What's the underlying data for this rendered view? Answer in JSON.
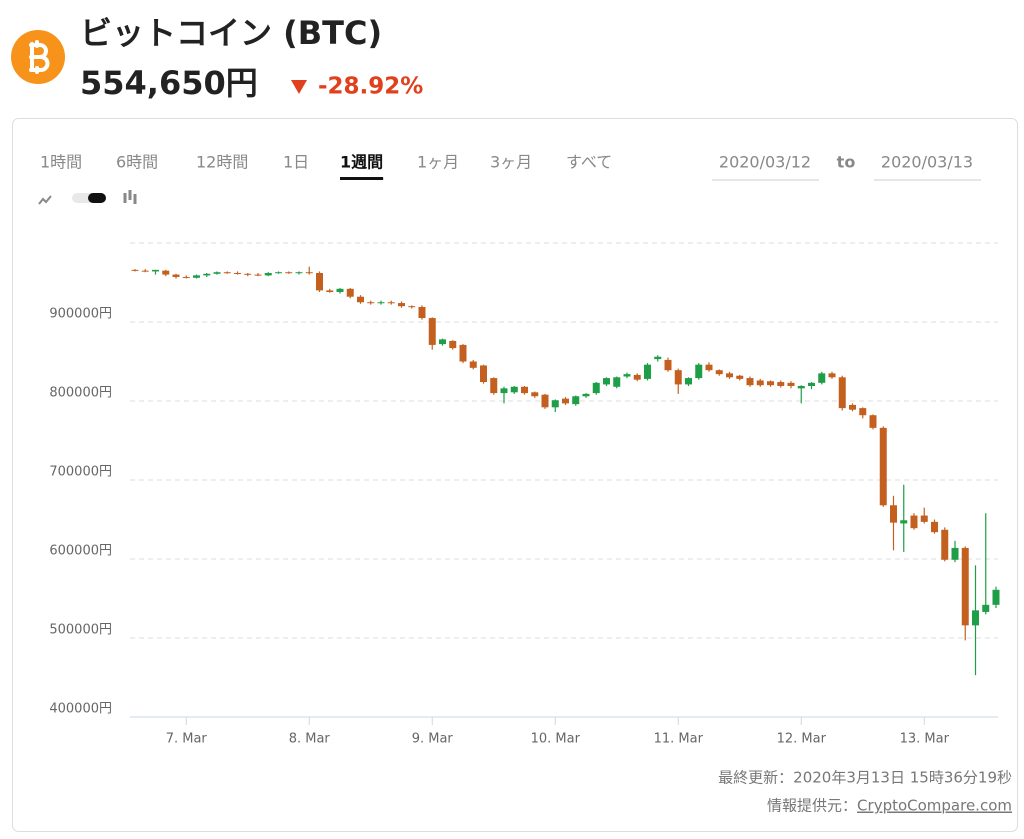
{
  "header": {
    "title": "ビットコイン (BTC)",
    "price": "554,650円",
    "change": "-28.92%"
  },
  "tabs": [
    "1時間",
    "6時間",
    "12時間",
    "1日",
    "1週間",
    "1ヶ月",
    "3ヶ月",
    "すべて"
  ],
  "active_tab": 4,
  "date_range": {
    "from": "2020/03/12",
    "to_label": "to",
    "to": "2020/03/13"
  },
  "chart_data": {
    "type": "candlestick",
    "categories": [
      null,
      null,
      null,
      null,
      null,
      "7. Mar",
      null,
      null,
      null,
      null,
      null,
      null,
      null,
      null,
      null,
      null,
      null,
      "8. Mar",
      null,
      null,
      null,
      null,
      null,
      null,
      null,
      null,
      null,
      null,
      null,
      "9. Mar",
      null,
      null,
      null,
      null,
      null,
      null,
      null,
      null,
      null,
      null,
      null,
      "10. Mar",
      null,
      null,
      null,
      null,
      null,
      null,
      null,
      null,
      null,
      null,
      null,
      "11. Mar",
      null,
      null,
      null,
      null,
      null,
      null,
      null,
      null,
      null,
      null,
      null,
      "12. Mar",
      null,
      null,
      null,
      null,
      null,
      null,
      null,
      null,
      null,
      null,
      null,
      "13. Mar",
      null,
      null,
      null,
      null,
      null,
      null,
      null
    ],
    "open": [
      966000,
      965000,
      964000,
      965000,
      960000,
      957000,
      956000,
      959000,
      961000,
      963000,
      962000,
      961000,
      960000,
      959000,
      962000,
      963000,
      962000,
      963000,
      962000,
      940000,
      938000,
      942000,
      932000,
      925000,
      924000,
      925000,
      924000,
      920000,
      919000,
      905000,
      872000,
      876000,
      871000,
      850000,
      845000,
      829000,
      810000,
      811000,
      818000,
      811000,
      808000,
      792000,
      803000,
      796000,
      806000,
      810000,
      821000,
      818000,
      831000,
      833000,
      828000,
      853000,
      852000,
      839000,
      821000,
      829000,
      846000,
      839000,
      835000,
      832000,
      829000,
      826000,
      825000,
      824000,
      823000,
      816000,
      819000,
      823000,
      835000,
      830000,
      795000,
      791000,
      782000,
      766000,
      668000,
      645000,
      655000,
      655000,
      647000,
      637000,
      599000,
      614000,
      516000,
      533000,
      542000
    ],
    "high": [
      967000,
      967000,
      966000,
      966000,
      961000,
      959000,
      960000,
      962000,
      964000,
      964000,
      964000,
      962000,
      962000,
      963000,
      964000,
      964000,
      964000,
      970000,
      964000,
      942000,
      943000,
      943000,
      934000,
      927000,
      927000,
      927000,
      926000,
      921000,
      921000,
      906000,
      879000,
      877000,
      872000,
      852000,
      846000,
      830000,
      818000,
      819000,
      819000,
      812000,
      809000,
      802000,
      805000,
      807000,
      810000,
      824000,
      830000,
      831000,
      836000,
      835000,
      848000,
      858000,
      855000,
      841000,
      830000,
      848000,
      849000,
      840000,
      837000,
      833000,
      831000,
      828000,
      826000,
      826000,
      825000,
      820000,
      824000,
      837000,
      837000,
      832000,
      797000,
      792000,
      783000,
      768000,
      680000,
      694000,
      658000,
      665000,
      650000,
      640000,
      623000,
      616000,
      592000,
      658000,
      565000
    ],
    "low": [
      964000,
      963000,
      960000,
      958000,
      955000,
      955000,
      955000,
      957000,
      960000,
      961000,
      960000,
      958000,
      958000,
      958000,
      961000,
      961000,
      960000,
      960000,
      938000,
      937000,
      936000,
      930000,
      923000,
      922000,
      922000,
      922000,
      918000,
      917000,
      903000,
      865000,
      870000,
      865000,
      848000,
      840000,
      822000,
      808000,
      797000,
      809000,
      808000,
      804000,
      790000,
      786000,
      795000,
      794000,
      804000,
      808000,
      819000,
      816000,
      829000,
      825000,
      826000,
      850000,
      837000,
      809000,
      819000,
      827000,
      837000,
      832000,
      828000,
      826000,
      818000,
      818000,
      818000,
      817000,
      816000,
      797000,
      815000,
      821000,
      828000,
      788000,
      787000,
      778000,
      764000,
      666000,
      611000,
      609000,
      637000,
      645000,
      632000,
      597000,
      596000,
      497000,
      453000,
      530000,
      538000
    ],
    "close": [
      965000,
      964000,
      966000,
      960000,
      957000,
      956000,
      959000,
      961000,
      963000,
      962000,
      961000,
      960000,
      959000,
      962000,
      963000,
      962000,
      963000,
      962000,
      940000,
      938000,
      942000,
      932000,
      925000,
      924000,
      925000,
      924000,
      920000,
      919000,
      905000,
      871000,
      878000,
      867000,
      850000,
      842000,
      824000,
      810000,
      816000,
      818000,
      810000,
      806000,
      792000,
      801000,
      797000,
      806000,
      809000,
      823000,
      829000,
      830000,
      834000,
      827000,
      846000,
      856000,
      839000,
      821000,
      829000,
      846000,
      839000,
      834000,
      830000,
      828000,
      820000,
      820000,
      820000,
      819000,
      819000,
      819000,
      823000,
      835000,
      830000,
      791000,
      789000,
      782000,
      766000,
      668000,
      646000,
      649000,
      639000,
      647000,
      634000,
      599000,
      614000,
      516000,
      535000,
      542000,
      561000
    ],
    "up_color": "#1d9e47",
    "down_color": "#c4601f",
    "ylim": [
      400000,
      1000000
    ],
    "yticks": [
      {
        "value": 400000,
        "label": "400000円"
      },
      {
        "value": 500000,
        "label": "500000円"
      },
      {
        "value": 600000,
        "label": "600000円"
      },
      {
        "value": 700000,
        "label": "700000円"
      },
      {
        "value": 800000,
        "label": "800000円"
      },
      {
        "value": 900000,
        "label": "900000円"
      }
    ],
    "grid": true
  },
  "footer": {
    "updated": "最終更新：2020年3月13日 15時36分19秒",
    "source_label": "情報提供元：",
    "source": "CryptoCompare.com"
  }
}
